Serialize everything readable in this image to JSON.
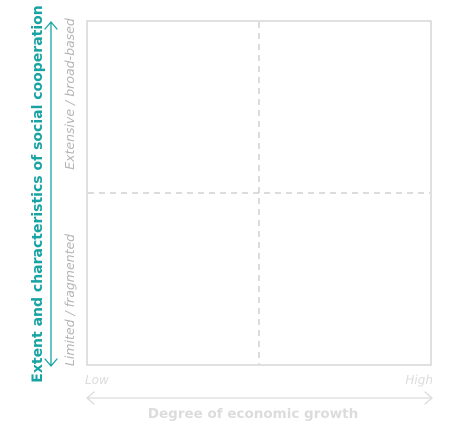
{
  "colors": {
    "accent": "#1aa3a3",
    "frame": "#cfcfcf",
    "divider": "#c8c8c8",
    "y_tick_text": "#b5b5b5",
    "x_muted": "#dcdcdc"
  },
  "y_axis": {
    "title": "Extent and characteristics of social cooperation",
    "high_label": "Extensive / broad-based",
    "low_label": "Limited / fragmented"
  },
  "x_axis": {
    "title": "Degree of economic growth",
    "low_label": "Low",
    "high_label": "High"
  },
  "quadrants": {
    "count": 4,
    "dividers": "dashed"
  }
}
